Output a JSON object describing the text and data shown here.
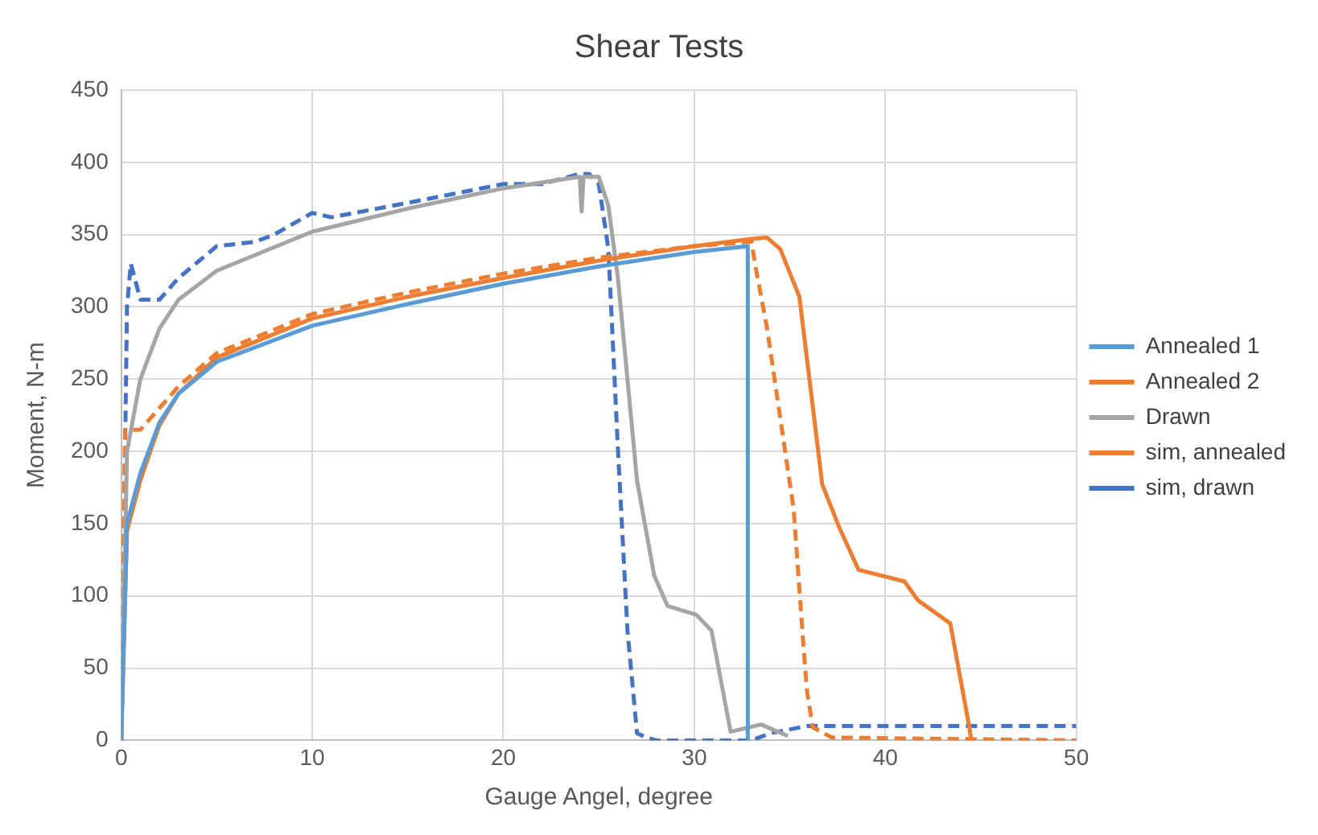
{
  "chart_data": {
    "type": "line",
    "title": "Shear Tests",
    "xlabel": "Gauge Angel, degree",
    "ylabel": "Moment, N-m",
    "xlim": [
      0,
      50
    ],
    "xticks": [
      0,
      10,
      20,
      30,
      40,
      50
    ],
    "ylim": [
      0,
      450
    ],
    "yticks": [
      0,
      50,
      100,
      150,
      200,
      250,
      300,
      350,
      400,
      450
    ],
    "grid": true,
    "legend": "right",
    "marker": "none",
    "series": [
      {
        "name": "Annealed 1",
        "color": "#5b9bd5",
        "line_style": "solid",
        "x": [
          0,
          0.3,
          1,
          2,
          3,
          5,
          10,
          15,
          20,
          25,
          30,
          32.8,
          32.8
        ],
        "values": [
          0,
          150,
          185,
          220,
          240,
          262,
          287,
          302,
          316,
          328,
          338,
          342,
          0
        ]
      },
      {
        "name": "Annealed 2",
        "color": "#ed7d31",
        "line_style": "solid",
        "x": [
          0,
          0.3,
          1,
          2,
          3,
          5,
          10,
          15,
          20,
          25,
          30,
          33,
          33.8,
          34.5,
          35.5,
          36.7,
          37.6,
          38.6,
          41,
          41.7,
          43.4,
          44.4,
          44.5
        ],
        "values": [
          0,
          145,
          180,
          218,
          240,
          265,
          292,
          307,
          320,
          332,
          342,
          347,
          348,
          340,
          307,
          177,
          147,
          118,
          110,
          97,
          81,
          9,
          0
        ]
      },
      {
        "name": "Drawn",
        "color": "#a5a5a5",
        "line_style": "solid",
        "x": [
          0,
          0.3,
          1,
          2,
          3,
          5,
          10,
          15,
          20,
          24,
          24.1,
          24.2,
          25,
          25.5,
          26,
          26.5,
          27,
          27.9,
          28.6,
          30.1,
          30.9,
          31.9,
          33.5,
          34.9
        ],
        "values": [
          0,
          200,
          250,
          285,
          305,
          325,
          352,
          368,
          382,
          390,
          366,
          390,
          390,
          370,
          320,
          250,
          180,
          114,
          93,
          87,
          76,
          6,
          11,
          3
        ]
      },
      {
        "name": "sim, annealed",
        "color": "#ed7d31",
        "line_style": "dashed",
        "x": [
          0,
          0.2,
          1,
          2,
          3,
          5,
          10,
          15,
          20,
          25,
          30,
          33,
          33.2,
          33.8,
          34.5,
          35.2,
          35.7,
          35.9,
          36.2,
          37.2,
          50
        ],
        "values": [
          0,
          215,
          215,
          230,
          245,
          268,
          295,
          310,
          323,
          334,
          342,
          345,
          328,
          286,
          223,
          160,
          68,
          34,
          9,
          2,
          0
        ]
      },
      {
        "name": "sim, drawn",
        "color": "#4472c4",
        "line_style": "dashed",
        "x": [
          0,
          0.3,
          0.5,
          1,
          2,
          3,
          5,
          7,
          8,
          10,
          11,
          15,
          20,
          22,
          24,
          24.5,
          25,
          25.5,
          26,
          26.5,
          27,
          27.5,
          28,
          33,
          34,
          35.9,
          50
        ],
        "values": [
          0,
          300,
          330,
          305,
          305,
          320,
          342,
          345,
          350,
          365,
          362,
          372,
          385,
          385,
          392,
          392,
          385,
          340,
          202,
          76,
          5,
          2,
          0,
          0,
          5,
          10,
          10
        ]
      }
    ]
  }
}
